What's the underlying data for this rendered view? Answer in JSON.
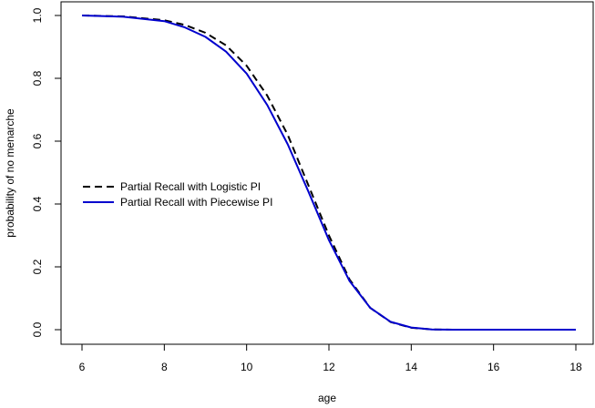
{
  "chart_data": {
    "type": "line",
    "xlabel": "age",
    "ylabel": "probability of no menarche",
    "xlim": [
      6,
      18
    ],
    "ylim": [
      0,
      1
    ],
    "xticks": [
      "6",
      "8",
      "10",
      "12",
      "14",
      "16",
      "18"
    ],
    "yticks": [
      "0.0",
      "0.2",
      "0.4",
      "0.6",
      "0.8",
      "1.0"
    ],
    "legend_position": "left-middle",
    "series": [
      {
        "name": "Partial Recall with Logistic PI",
        "color": "#000000",
        "dash": "dashed",
        "x": [
          6,
          7,
          8,
          8.5,
          9,
          9.5,
          10,
          10.5,
          11,
          11.5,
          12,
          12.5,
          13,
          13.5,
          14,
          14.5,
          15,
          15.5,
          16,
          17,
          18
        ],
        "y": [
          1.0,
          0.997,
          0.985,
          0.97,
          0.945,
          0.905,
          0.84,
          0.745,
          0.62,
          0.46,
          0.3,
          0.16,
          0.07,
          0.024,
          0.006,
          0.001,
          0.0,
          0.0,
          0.0,
          0.0,
          0.0
        ]
      },
      {
        "name": "Partial Recall with Piecewise PI",
        "color": "#0000cd",
        "dash": "solid",
        "x": [
          6,
          7,
          8,
          8.5,
          9,
          9.5,
          10,
          10.5,
          11,
          11.5,
          12,
          12.5,
          13,
          13.5,
          14,
          14.5,
          15,
          15.5,
          16,
          17,
          18
        ],
        "y": [
          1.0,
          0.996,
          0.982,
          0.962,
          0.932,
          0.885,
          0.815,
          0.715,
          0.59,
          0.44,
          0.285,
          0.155,
          0.07,
          0.025,
          0.007,
          0.001,
          0.0,
          0.0,
          0.0,
          0.0,
          0.0
        ]
      }
    ]
  }
}
